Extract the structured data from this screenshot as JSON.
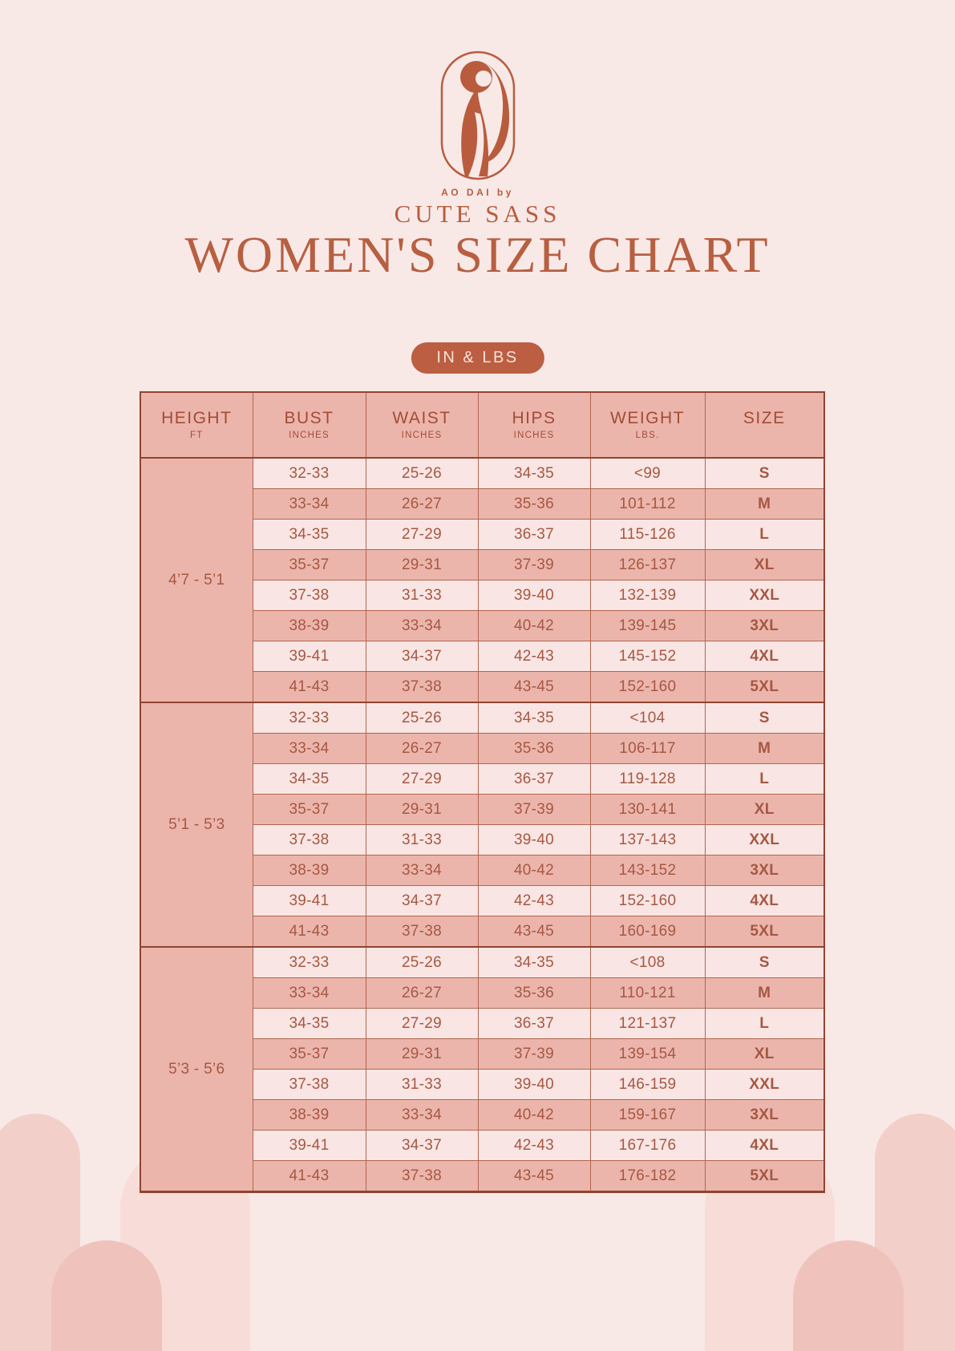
{
  "brand": {
    "tagline": "AO DAI by",
    "name": "CUTE SASS",
    "logo_icon": "woman-in-ao-dai-icon"
  },
  "title": "WOMEN'S SIZE CHART",
  "unit_badge": "IN & LBS",
  "colors": {
    "background": "#f8e9e7",
    "accent_terracotta": "#bb5e41",
    "table_header_and_dark_rows": "#ecb5ab",
    "table_light_rows": "#f9e5e3",
    "table_border": "#8f4430",
    "badge_text": "#f6e2d8"
  },
  "table": {
    "columns": [
      {
        "label": "HEIGHT",
        "sub": "FT"
      },
      {
        "label": "BUST",
        "sub": "INCHES"
      },
      {
        "label": "WAIST",
        "sub": "INCHES"
      },
      {
        "label": "HIPS",
        "sub": "INCHES"
      },
      {
        "label": "WEIGHT",
        "sub": "LBS."
      },
      {
        "label": "SIZE",
        "sub": ""
      }
    ],
    "groups": [
      {
        "height": "4’7 - 5’1",
        "rows": [
          [
            "32-33",
            "25-26",
            "34-35",
            "<99",
            "S"
          ],
          [
            "33-34",
            "26-27",
            "35-36",
            "101-112",
            "M"
          ],
          [
            "34-35",
            "27-29",
            "36-37",
            "115-126",
            "L"
          ],
          [
            "35-37",
            "29-31",
            "37-39",
            "126-137",
            "XL"
          ],
          [
            "37-38",
            "31-33",
            "39-40",
            "132-139",
            "XXL"
          ],
          [
            "38-39",
            "33-34",
            "40-42",
            "139-145",
            "3XL"
          ],
          [
            "39-41",
            "34-37",
            "42-43",
            "145-152",
            "4XL"
          ],
          [
            "41-43",
            "37-38",
            "43-45",
            "152-160",
            "5XL"
          ]
        ]
      },
      {
        "height": "5’1 - 5’3",
        "rows": [
          [
            "32-33",
            "25-26",
            "34-35",
            "<104",
            "S"
          ],
          [
            "33-34",
            "26-27",
            "35-36",
            "106-117",
            "M"
          ],
          [
            "34-35",
            "27-29",
            "36-37",
            "119-128",
            "L"
          ],
          [
            "35-37",
            "29-31",
            "37-39",
            "130-141",
            "XL"
          ],
          [
            "37-38",
            "31-33",
            "39-40",
            "137-143",
            "XXL"
          ],
          [
            "38-39",
            "33-34",
            "40-42",
            "143-152",
            "3XL"
          ],
          [
            "39-41",
            "34-37",
            "42-43",
            "152-160",
            "4XL"
          ],
          [
            "41-43",
            "37-38",
            "43-45",
            "160-169",
            "5XL"
          ]
        ]
      },
      {
        "height": "5’3 - 5’6",
        "rows": [
          [
            "32-33",
            "25-26",
            "34-35",
            "<108",
            "S"
          ],
          [
            "33-34",
            "26-27",
            "35-36",
            "110-121",
            "M"
          ],
          [
            "34-35",
            "27-29",
            "36-37",
            "121-137",
            "L"
          ],
          [
            "35-37",
            "29-31",
            "37-39",
            "139-154",
            "XL"
          ],
          [
            "37-38",
            "31-33",
            "39-40",
            "146-159",
            "XXL"
          ],
          [
            "38-39",
            "33-34",
            "40-42",
            "159-167",
            "3XL"
          ],
          [
            "39-41",
            "34-37",
            "42-43",
            "167-176",
            "4XL"
          ],
          [
            "41-43",
            "37-38",
            "43-45",
            "176-182",
            "5XL"
          ]
        ]
      }
    ]
  }
}
